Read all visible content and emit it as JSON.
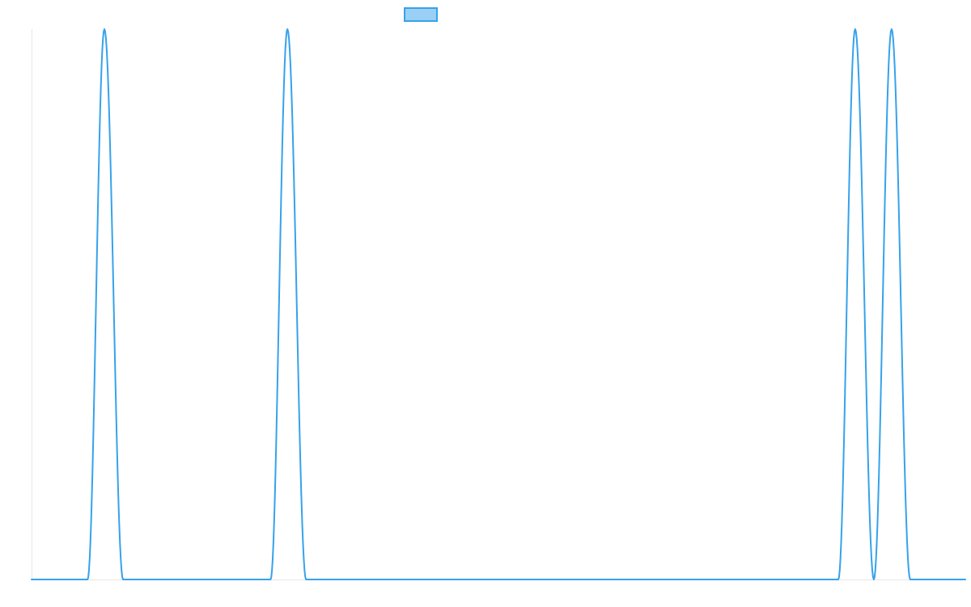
{
  "chart_data": {
    "type": "line",
    "title": "",
    "xlabel": "",
    "ylabel": "",
    "ylim": [
      0,
      1
    ],
    "xlim": [
      0,
      1
    ],
    "grid": false,
    "legend": {
      "position": "top-center",
      "entries": [
        {
          "label": ""
        }
      ]
    },
    "series": [
      {
        "color": "#36a2eb",
        "fill": "#9ad0f5",
        "values": [
          {
            "x": 0.0,
            "y": 0
          },
          {
            "x": 0.06,
            "y": 0
          },
          {
            "x": 0.078,
            "y": 1
          },
          {
            "x": 0.098,
            "y": 0
          },
          {
            "x": 0.256,
            "y": 0
          },
          {
            "x": 0.274,
            "y": 1
          },
          {
            "x": 0.294,
            "y": 0
          },
          {
            "x": 0.864,
            "y": 0
          },
          {
            "x": 0.882,
            "y": 1
          },
          {
            "x": 0.902,
            "y": 0
          },
          {
            "x": 0.921,
            "y": 1
          },
          {
            "x": 0.941,
            "y": 0
          },
          {
            "x": 1.0,
            "y": 0
          }
        ]
      }
    ]
  }
}
